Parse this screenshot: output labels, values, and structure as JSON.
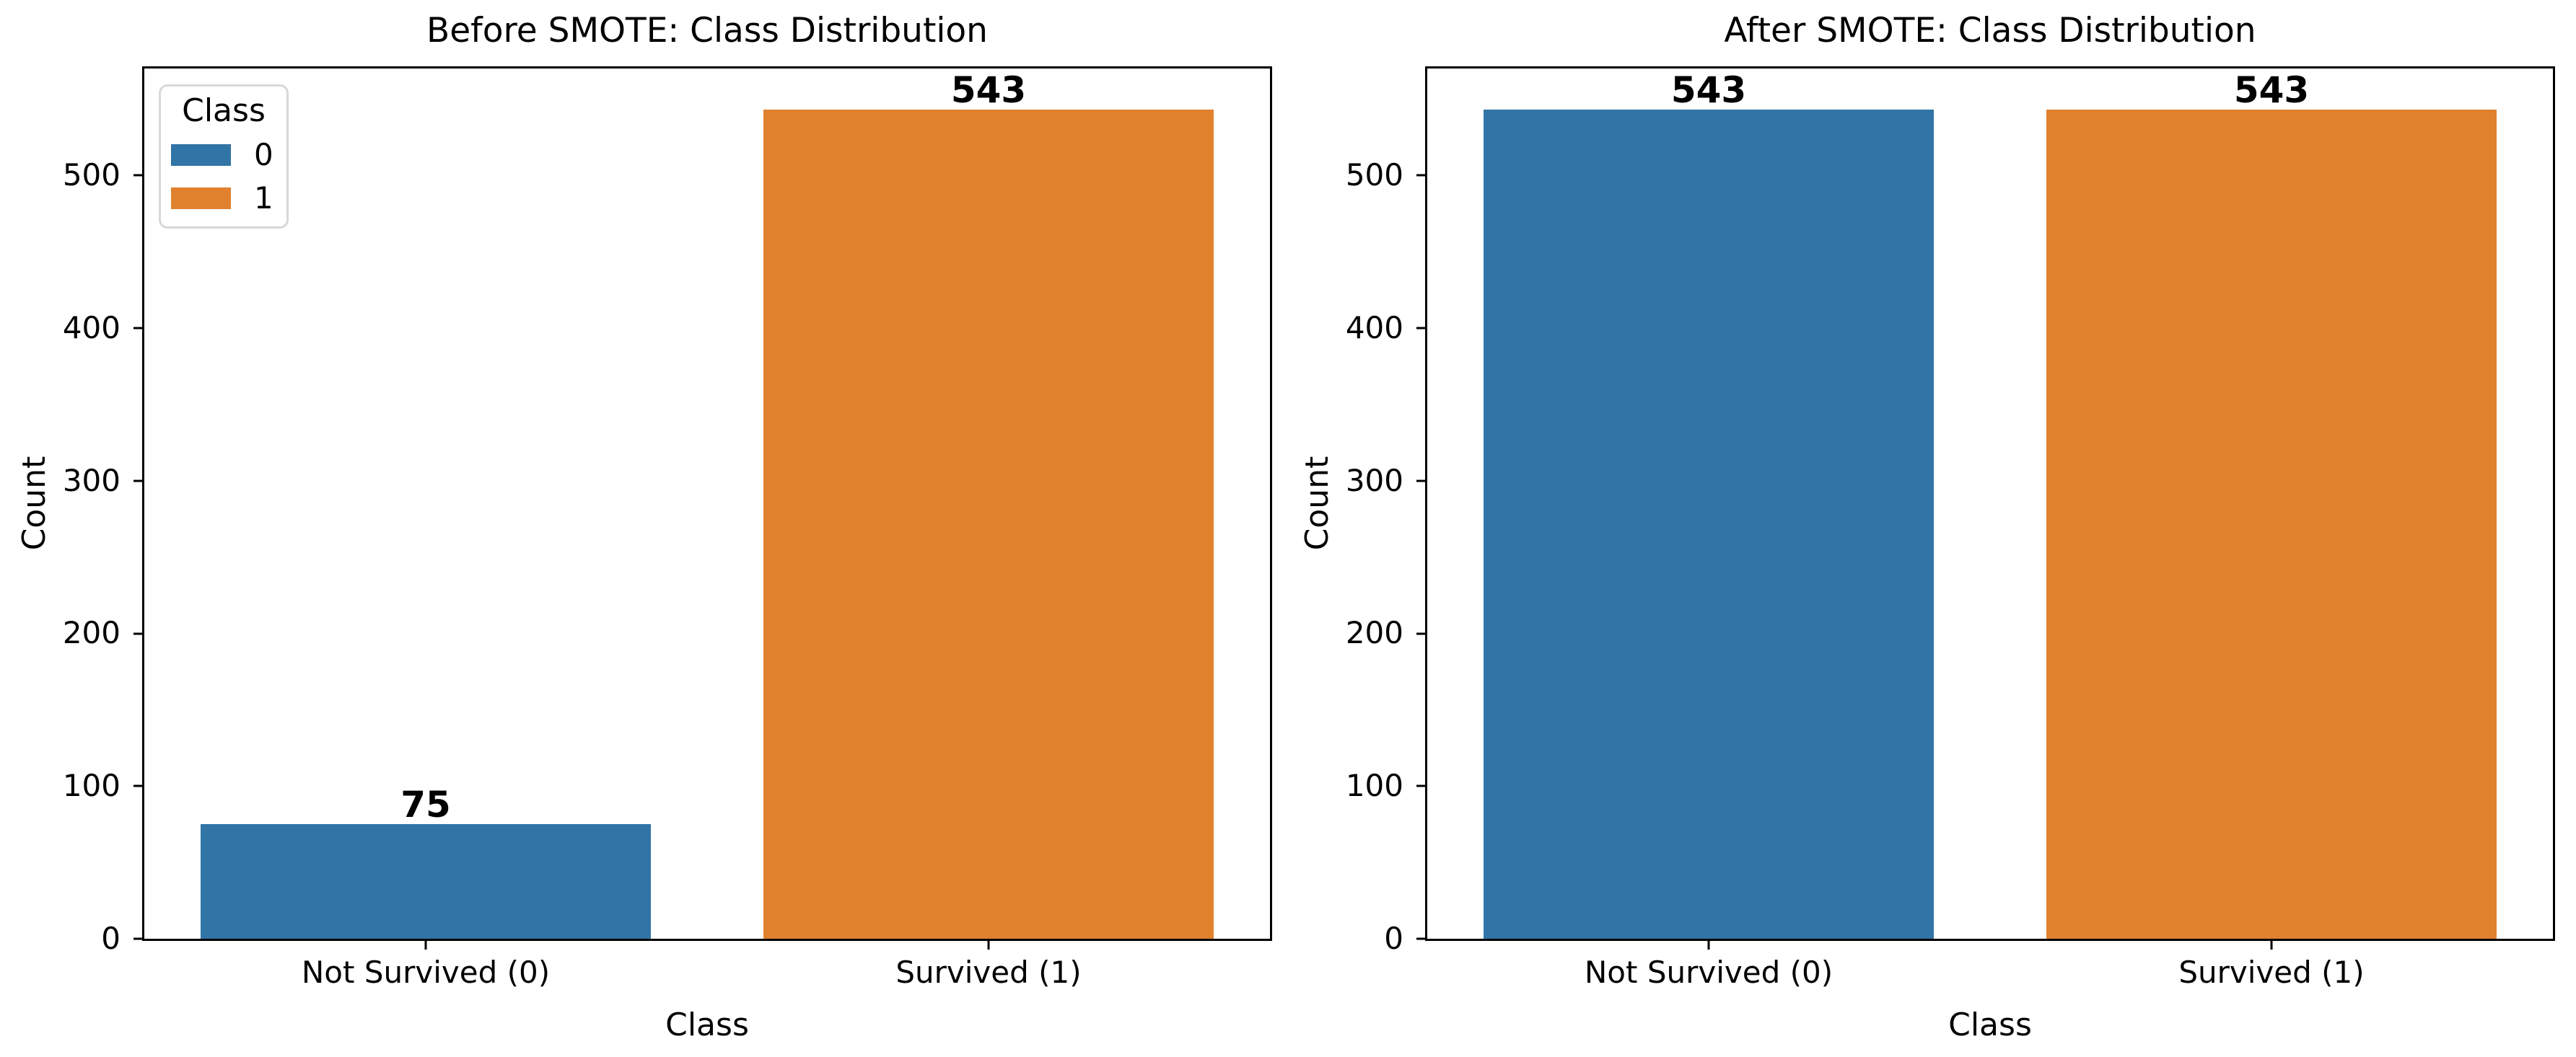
{
  "figure": {
    "background": "#ffffff",
    "text_color": "#000000",
    "spine_color": "#000000",
    "class0_color": "#3174A6",
    "class1_color": "#E0812E",
    "legend_border_color": "#d8d8d8"
  },
  "chart_data": [
    {
      "type": "bar",
      "title": "Before SMOTE: Class Distribution",
      "xlabel": "Class",
      "ylabel": "Count",
      "categories": [
        "Not Survived (0)",
        "Survived (1)"
      ],
      "values": [
        75,
        543
      ],
      "bar_labels": [
        "75",
        "543"
      ],
      "bar_colors": [
        "#3174A6",
        "#E0812E"
      ],
      "yticks": [
        0,
        100,
        200,
        300,
        400,
        500
      ],
      "ylim": [
        0,
        570
      ],
      "grid": false,
      "legend": {
        "title": "Class",
        "position": "upper-left",
        "entries": [
          {
            "label": "0",
            "color": "#3174A6"
          },
          {
            "label": "1",
            "color": "#E0812E"
          }
        ]
      }
    },
    {
      "type": "bar",
      "title": "After SMOTE: Class Distribution",
      "xlabel": "Class",
      "ylabel": "Count",
      "categories": [
        "Not Survived (0)",
        "Survived (1)"
      ],
      "values": [
        543,
        543
      ],
      "bar_labels": [
        "543",
        "543"
      ],
      "bar_colors": [
        "#3174A6",
        "#E0812E"
      ],
      "yticks": [
        0,
        100,
        200,
        300,
        400,
        500
      ],
      "ylim": [
        0,
        570
      ],
      "grid": false,
      "legend": null
    }
  ]
}
